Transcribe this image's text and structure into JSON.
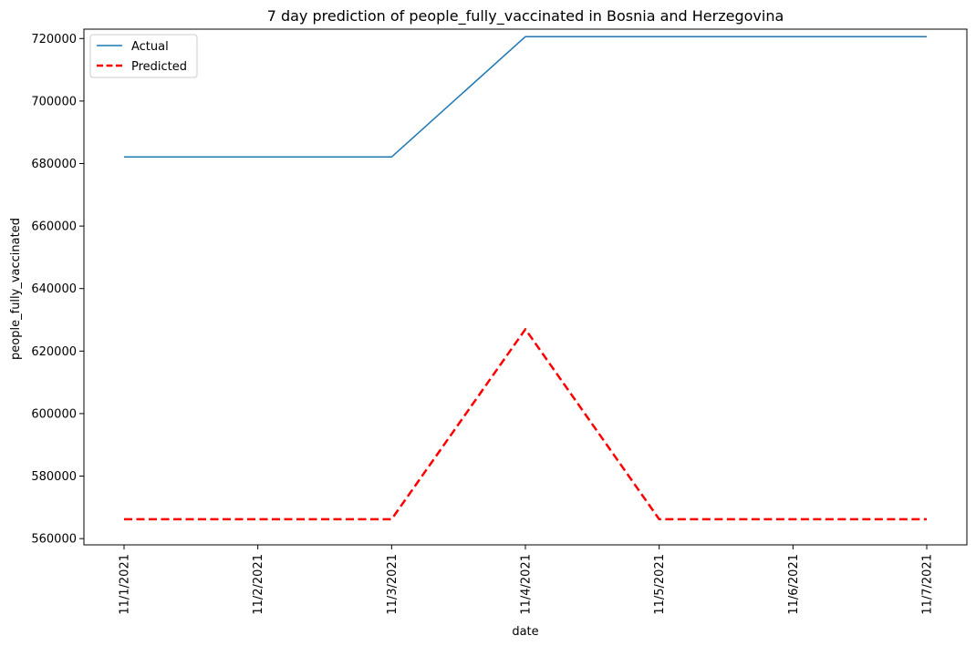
{
  "colors": {
    "actual": "#1f77b4",
    "predicted": "#ff0000",
    "axis": "#000000",
    "legend_border": "#cccccc"
  },
  "chart_data": {
    "type": "line",
    "title": "7 day prediction of people_fully_vaccinated in Bosnia and Herzegovina",
    "xlabel": "date",
    "ylabel": "people_fully_vaccinated",
    "categories": [
      "11/1/2021",
      "11/2/2021",
      "11/3/2021",
      "11/4/2021",
      "11/5/2021",
      "11/6/2021",
      "11/7/2021"
    ],
    "yticks": [
      560000,
      580000,
      600000,
      620000,
      640000,
      660000,
      680000,
      700000,
      720000
    ],
    "ylim": [
      558000,
      723000
    ],
    "grid": false,
    "legend_position": "top-left",
    "series": [
      {
        "name": "Actual",
        "values": [
          682100,
          682100,
          682100,
          720600,
          720600,
          720600,
          720600
        ],
        "style": "solid"
      },
      {
        "name": "Predicted",
        "values": [
          566200,
          566200,
          566200,
          627000,
          566200,
          566200,
          566200
        ],
        "style": "dashed"
      }
    ]
  }
}
